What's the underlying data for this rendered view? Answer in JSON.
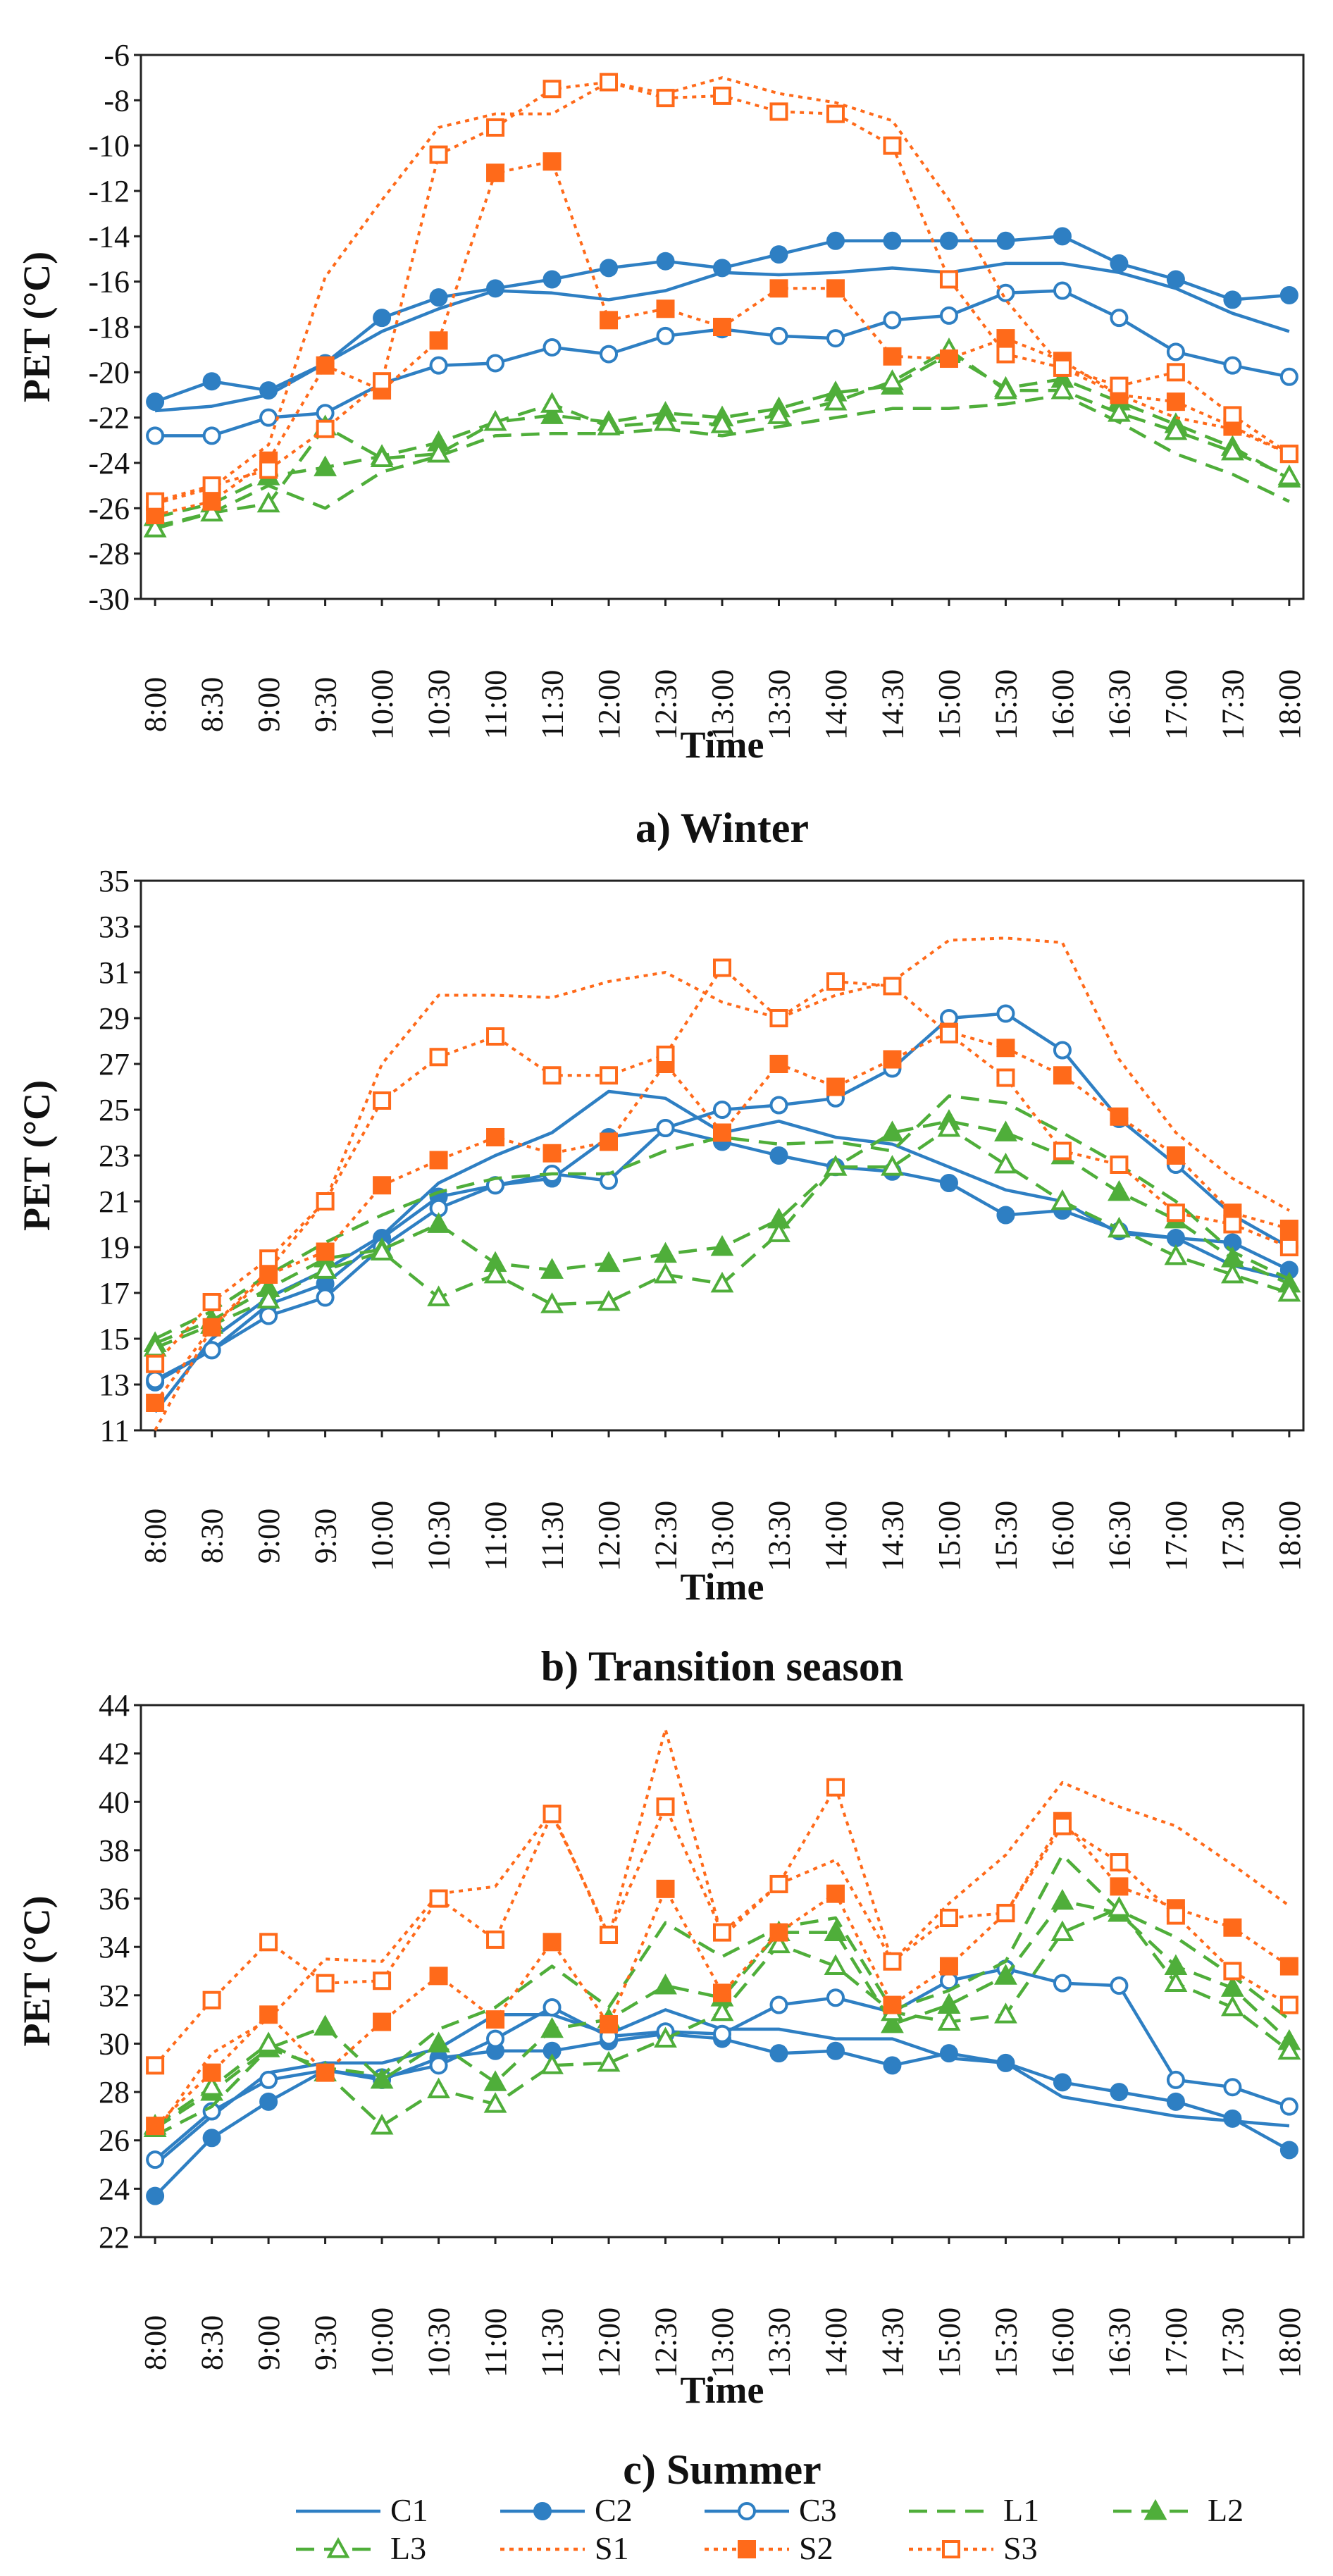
{
  "styles": {
    "C1": {
      "color": "#2e7fc3",
      "dash": "none",
      "marker": "none"
    },
    "C2": {
      "color": "#2e7fc3",
      "dash": "none",
      "marker": "circle-filled"
    },
    "C3": {
      "color": "#2e7fc3",
      "dash": "none",
      "marker": "circle-open"
    },
    "L1": {
      "color": "#4fae3a",
      "dash": "long-dash",
      "marker": "none"
    },
    "L2": {
      "color": "#4fae3a",
      "dash": "long-dash",
      "marker": "triangle-filled"
    },
    "L3": {
      "color": "#4fae3a",
      "dash": "long-dash",
      "marker": "triangle-open"
    },
    "S1": {
      "color": "#ff6a1a",
      "dash": "dot",
      "marker": "none"
    },
    "S2": {
      "color": "#ff6a1a",
      "dash": "dot",
      "marker": "square-filled"
    },
    "S3": {
      "color": "#ff6a1a",
      "dash": "dot",
      "marker": "square-open"
    }
  },
  "legend": [
    "C1",
    "C2",
    "C3",
    "L1",
    "L2",
    "L3",
    "S1",
    "S2",
    "S3"
  ],
  "chart_data": [
    {
      "type": "line",
      "caption": "a) Winter",
      "xlabel": "Time",
      "ylabel": "PET (°C)",
      "ylim": [
        -30,
        -6
      ],
      "yticks": [
        -30,
        -28,
        -26,
        -24,
        -22,
        -20,
        -18,
        -16,
        -14,
        -12,
        -10,
        -8,
        -6
      ],
      "categories": [
        "8:00",
        "8:30",
        "9:00",
        "9:30",
        "10:00",
        "10:30",
        "11:00",
        "11:30",
        "12:00",
        "12:30",
        "13:00",
        "13:30",
        "14:00",
        "14:30",
        "15:00",
        "15:30",
        "16:00",
        "16:30",
        "17:00",
        "17:30",
        "18:00"
      ],
      "series": [
        {
          "name": "C1",
          "values": [
            -21.7,
            -21.5,
            -21.0,
            -19.6,
            -18.2,
            -17.2,
            -16.4,
            -16.5,
            -16.8,
            -16.4,
            -15.6,
            -15.7,
            -15.6,
            -15.4,
            -15.6,
            -15.2,
            -15.2,
            -15.6,
            -16.3,
            -17.4,
            -18.2
          ]
        },
        {
          "name": "C2",
          "values": [
            -21.3,
            -20.4,
            -20.8,
            -19.6,
            -17.6,
            -16.7,
            -16.3,
            -15.9,
            -15.4,
            -15.1,
            -15.4,
            -14.8,
            -14.2,
            -14.2,
            -14.2,
            -14.2,
            -14.0,
            -15.2,
            -15.9,
            -16.8,
            -16.6
          ]
        },
        {
          "name": "C3",
          "values": [
            -22.8,
            -22.8,
            -22.0,
            -21.8,
            -20.5,
            -19.7,
            -19.6,
            -18.9,
            -19.2,
            -18.4,
            -18.1,
            -18.4,
            -18.5,
            -17.7,
            -17.5,
            -16.5,
            -16.4,
            -17.6,
            -19.1,
            -19.7,
            -20.2
          ]
        },
        {
          "name": "L1",
          "values": [
            -26.8,
            -26.2,
            -25.0,
            -26.0,
            -24.4,
            -23.7,
            -22.8,
            -22.7,
            -22.7,
            -22.5,
            -22.8,
            -22.4,
            -22.0,
            -21.6,
            -21.6,
            -21.4,
            -21.0,
            -22.2,
            -23.6,
            -24.5,
            -25.7
          ]
        },
        {
          "name": "L2",
          "values": [
            -26.4,
            -25.8,
            -24.6,
            -24.2,
            -23.7,
            -23.1,
            -22.2,
            -21.9,
            -22.2,
            -21.8,
            -22.0,
            -21.6,
            -20.9,
            -20.6,
            -19.2,
            -20.7,
            -20.3,
            -21.3,
            -22.3,
            -23.3,
            -24.7
          ]
        },
        {
          "name": "L3",
          "values": [
            -26.9,
            -26.2,
            -25.8,
            -22.4,
            -23.8,
            -23.6,
            -22.2,
            -21.4,
            -22.4,
            -22.2,
            -22.3,
            -21.9,
            -21.3,
            -20.4,
            -19.0,
            -20.8,
            -20.8,
            -21.8,
            -22.6,
            -23.5,
            -24.6
          ]
        },
        {
          "name": "S1",
          "values": [
            -25.8,
            -25.1,
            -23.2,
            -15.8,
            -12.4,
            -9.2,
            -8.6,
            -8.6,
            -7.2,
            -7.7,
            -7.0,
            -7.7,
            -8.1,
            -8.9,
            -12.4,
            -16.8,
            -19.8,
            -21.0,
            -22.0,
            -22.5,
            -23.6
          ]
        },
        {
          "name": "S2",
          "values": [
            -26.3,
            -25.7,
            -23.9,
            -19.7,
            -20.8,
            -18.6,
            -11.2,
            -10.7,
            -17.7,
            -17.2,
            -18.0,
            -16.3,
            -16.3,
            -19.3,
            -19.4,
            -18.5,
            -19.5,
            -21.0,
            -21.3,
            -22.4,
            -23.6
          ]
        },
        {
          "name": "S3",
          "values": [
            -25.7,
            -25.0,
            -24.3,
            -22.5,
            -20.4,
            -10.4,
            -9.2,
            -7.5,
            -7.2,
            -7.9,
            -7.8,
            -8.5,
            -8.6,
            -10.0,
            -15.9,
            -19.2,
            -19.8,
            -20.6,
            -20.0,
            -21.9,
            -23.6
          ]
        }
      ]
    },
    {
      "type": "line",
      "caption": "b) Transition season",
      "xlabel": "Time",
      "ylabel": "PET (°C)",
      "ylim": [
        11,
        35
      ],
      "yticks": [
        11,
        13,
        15,
        17,
        19,
        21,
        23,
        25,
        27,
        29,
        31,
        33,
        35
      ],
      "categories": [
        "8:00",
        "8:30",
        "9:00",
        "9:30",
        "10:00",
        "10:30",
        "11:00",
        "11:30",
        "12:00",
        "12:30",
        "13:00",
        "13:30",
        "14:00",
        "14:30",
        "15:00",
        "15:30",
        "16:00",
        "16:30",
        "17:00",
        "17:30",
        "18:00"
      ],
      "series": [
        {
          "name": "C1",
          "values": [
            11.8,
            15.0,
            16.8,
            18.0,
            19.5,
            21.8,
            23.0,
            24.0,
            25.8,
            25.5,
            24.0,
            24.5,
            23.8,
            23.5,
            22.5,
            21.5,
            21.0,
            19.6,
            19.4,
            18.2,
            17.6
          ]
        },
        {
          "name": "C2",
          "values": [
            13.1,
            14.5,
            16.5,
            17.4,
            19.4,
            21.2,
            21.7,
            22.0,
            23.8,
            24.2,
            23.6,
            23.0,
            22.5,
            22.3,
            21.8,
            20.4,
            20.6,
            19.7,
            19.4,
            19.2,
            18.0
          ]
        },
        {
          "name": "C3",
          "values": [
            13.2,
            14.5,
            16.0,
            16.8,
            19.0,
            20.7,
            21.7,
            22.2,
            21.9,
            24.2,
            25.0,
            25.2,
            25.5,
            26.8,
            29.0,
            29.2,
            27.6,
            24.6,
            22.6,
            20.4,
            19.0
          ]
        },
        {
          "name": "L1",
          "values": [
            15.0,
            16.2,
            17.8,
            19.2,
            20.4,
            21.4,
            22.0,
            22.2,
            22.2,
            23.2,
            23.8,
            23.5,
            23.6,
            23.2,
            25.6,
            25.3,
            24.0,
            22.6,
            21.0,
            18.8,
            17.6
          ]
        },
        {
          "name": "L2",
          "values": [
            14.8,
            15.8,
            17.2,
            18.5,
            18.9,
            20.0,
            18.3,
            18.0,
            18.3,
            18.7,
            19.0,
            20.2,
            22.5,
            24.0,
            24.5,
            24.0,
            23.0,
            21.4,
            20.2,
            18.5,
            17.4
          ]
        },
        {
          "name": "L3",
          "values": [
            14.6,
            15.6,
            16.7,
            18.0,
            18.8,
            16.8,
            17.8,
            16.5,
            16.6,
            17.8,
            17.4,
            19.6,
            22.5,
            22.5,
            24.2,
            22.6,
            21.0,
            19.8,
            18.6,
            17.8,
            17.0
          ]
        },
        {
          "name": "S1",
          "values": [
            11.0,
            15.5,
            18.0,
            21.0,
            27.0,
            30.0,
            30.0,
            29.9,
            30.6,
            31.0,
            29.7,
            29.0,
            30.0,
            30.6,
            32.4,
            32.5,
            32.3,
            27.2,
            24.0,
            22.0,
            20.6
          ]
        },
        {
          "name": "S2",
          "values": [
            12.2,
            15.5,
            17.8,
            18.8,
            21.7,
            22.8,
            23.8,
            23.1,
            23.6,
            27.0,
            24.0,
            27.0,
            26.0,
            27.2,
            28.4,
            27.7,
            26.5,
            24.7,
            23.0,
            20.5,
            19.8
          ]
        },
        {
          "name": "S3",
          "values": [
            13.9,
            16.6,
            18.5,
            21.0,
            25.4,
            27.3,
            28.2,
            26.5,
            26.5,
            27.4,
            31.2,
            29.0,
            30.6,
            30.4,
            28.3,
            26.4,
            23.2,
            22.6,
            20.5,
            20.0,
            19.0
          ]
        }
      ]
    },
    {
      "type": "line",
      "caption": "c) Summer",
      "xlabel": "Time",
      "ylabel": "PET (°C)",
      "ylim": [
        22,
        44
      ],
      "yticks": [
        22,
        24,
        26,
        28,
        30,
        32,
        34,
        36,
        38,
        40,
        42,
        44
      ],
      "categories": [
        "8:00",
        "8:30",
        "9:00",
        "9:30",
        "10:00",
        "10:30",
        "11:00",
        "11:30",
        "12:00",
        "12:30",
        "13:00",
        "13:30",
        "14:00",
        "14:30",
        "15:00",
        "15:30",
        "16:00",
        "16:30",
        "17:00",
        "17:30",
        "18:00"
      ],
      "series": [
        {
          "name": "C1",
          "values": [
            25.0,
            27.0,
            28.8,
            29.2,
            29.2,
            29.8,
            31.2,
            31.2,
            30.4,
            31.4,
            30.6,
            30.6,
            30.2,
            30.2,
            29.4,
            29.2,
            27.8,
            27.4,
            27.0,
            26.8,
            26.6
          ]
        },
        {
          "name": "C2",
          "values": [
            23.7,
            26.1,
            27.6,
            28.9,
            28.5,
            29.4,
            29.7,
            29.7,
            30.1,
            30.4,
            30.2,
            29.6,
            29.7,
            29.1,
            29.6,
            29.2,
            28.4,
            28.0,
            27.6,
            26.9,
            25.6
          ]
        },
        {
          "name": "C3",
          "values": [
            25.2,
            27.2,
            28.5,
            28.9,
            28.6,
            29.1,
            30.2,
            31.5,
            30.3,
            30.5,
            30.4,
            31.6,
            31.9,
            31.3,
            32.6,
            33.1,
            32.5,
            32.4,
            28.5,
            28.2,
            27.4
          ]
        },
        {
          "name": "L1",
          "values": [
            26.2,
            27.4,
            29.8,
            29.0,
            28.7,
            30.6,
            31.5,
            33.2,
            31.5,
            35.0,
            33.6,
            34.8,
            35.2,
            31.4,
            32.2,
            33.4,
            37.8,
            35.5,
            34.4,
            32.8,
            31.0
          ]
        },
        {
          "name": "L2",
          "values": [
            26.5,
            28.0,
            29.8,
            30.7,
            28.5,
            30.0,
            28.4,
            30.6,
            31.0,
            32.4,
            31.9,
            34.6,
            34.6,
            30.8,
            31.6,
            32.8,
            35.9,
            35.4,
            33.2,
            32.3,
            30.1
          ]
        },
        {
          "name": "L3",
          "values": [
            26.6,
            28.2,
            30.0,
            28.8,
            26.6,
            28.1,
            27.5,
            29.1,
            29.2,
            30.2,
            31.3,
            34.1,
            33.2,
            31.3,
            30.9,
            31.2,
            34.6,
            35.6,
            32.5,
            31.5,
            29.7
          ]
        },
        {
          "name": "S1",
          "values": [
            26.3,
            29.6,
            31.0,
            33.5,
            33.4,
            36.2,
            36.5,
            39.6,
            34.4,
            43.0,
            34.4,
            36.6,
            37.6,
            33.4,
            35.8,
            37.8,
            40.8,
            39.8,
            39.0,
            37.4,
            35.7
          ]
        },
        {
          "name": "S2",
          "values": [
            26.6,
            28.8,
            31.2,
            28.8,
            30.9,
            32.8,
            31.0,
            34.2,
            30.8,
            36.4,
            32.1,
            34.6,
            36.2,
            31.6,
            33.2,
            35.4,
            39.2,
            36.5,
            35.6,
            34.8,
            33.2
          ]
        },
        {
          "name": "S3",
          "values": [
            29.1,
            31.8,
            34.2,
            32.5,
            32.6,
            36.0,
            34.3,
            39.5,
            34.5,
            39.8,
            34.6,
            36.6,
            40.6,
            33.4,
            35.2,
            35.4,
            39.0,
            37.5,
            35.3,
            33.0,
            31.6
          ]
        }
      ]
    }
  ]
}
